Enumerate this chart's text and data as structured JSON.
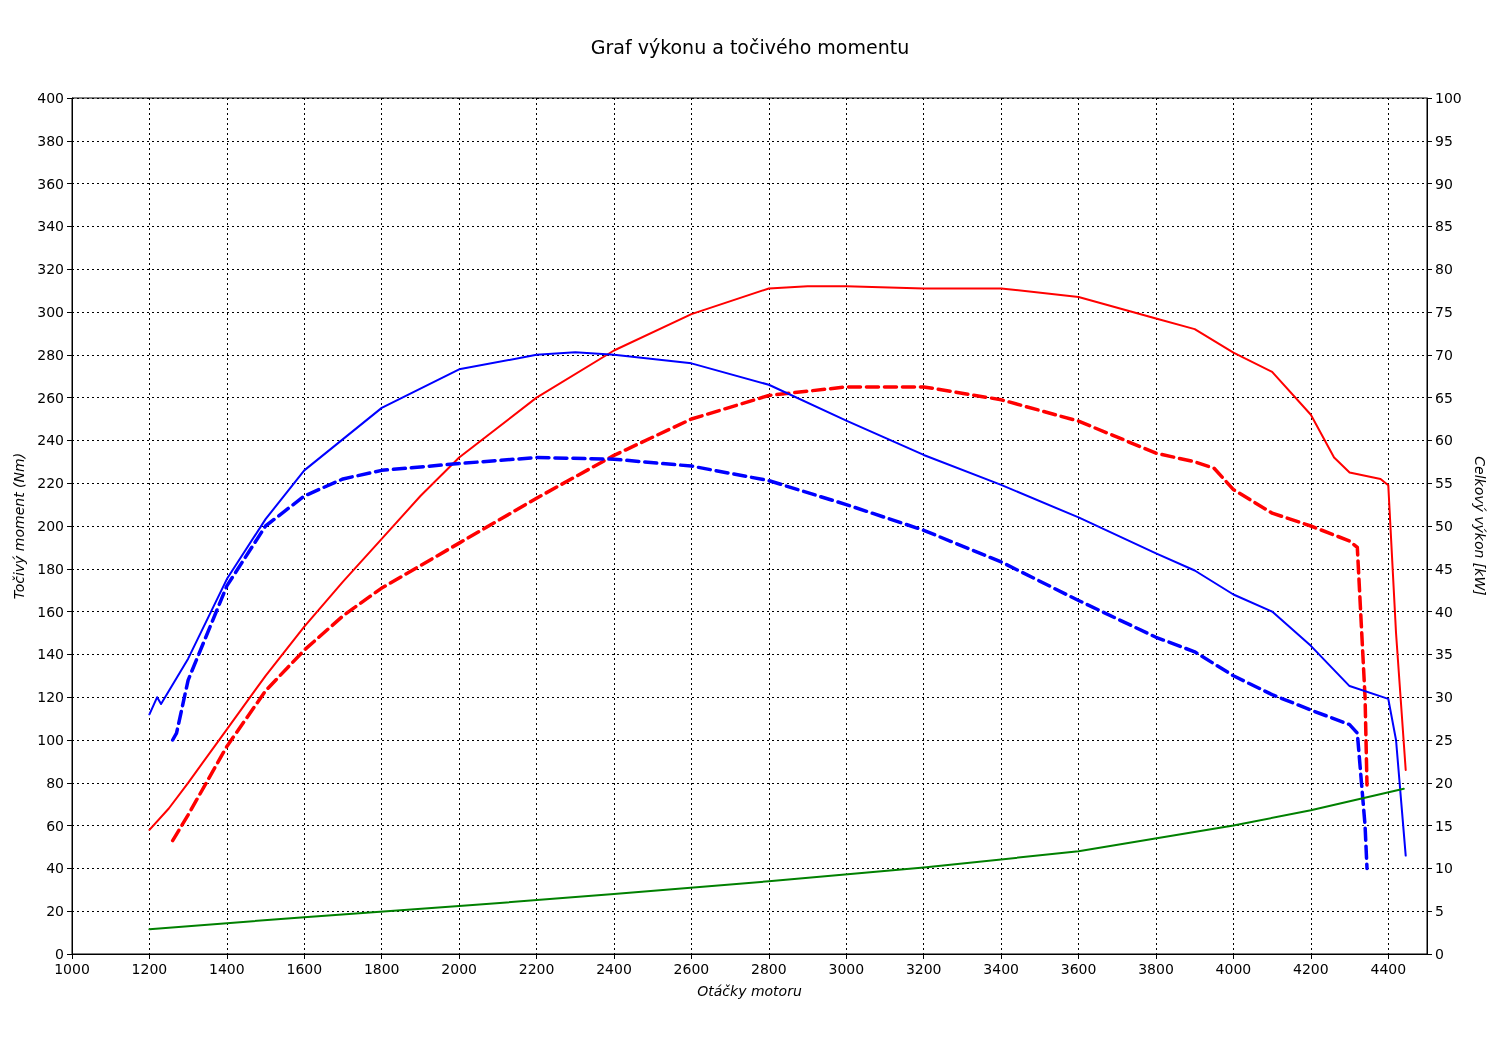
{
  "chart_data": {
    "type": "line",
    "title": "Graf výkonu a točivého momentu",
    "xlabel": "Otáčky motoru",
    "ylabel": "Točivý moment (Nm)",
    "y2label": "Celkový výkon [kW]",
    "xlim": [
      1000,
      4500
    ],
    "xticks": [
      1000,
      1200,
      1400,
      1600,
      1800,
      2000,
      2200,
      2400,
      2600,
      2800,
      3000,
      3200,
      3400,
      3600,
      3800,
      4000,
      4200,
      4400
    ],
    "ylim": [
      0,
      400
    ],
    "yticks": [
      0,
      20,
      40,
      60,
      80,
      100,
      120,
      140,
      160,
      180,
      200,
      220,
      240,
      260,
      280,
      300,
      320,
      340,
      360,
      380,
      400
    ],
    "y2lim": [
      0,
      100
    ],
    "y2ticks": [
      0,
      5,
      10,
      15,
      20,
      25,
      30,
      35,
      40,
      45,
      50,
      55,
      60,
      65,
      70,
      75,
      80,
      85,
      90,
      95,
      100
    ],
    "grid": true,
    "marker": "none",
    "series": [
      {
        "color": "#ff0000",
        "line_style": "solid",
        "x": [
          1200,
          1250,
          1300,
          1400,
          1500,
          1600,
          1700,
          1800,
          1900,
          2000,
          2200,
          2400,
          2600,
          2800,
          2900,
          3000,
          3200,
          3400,
          3600,
          3800,
          3900,
          4000,
          4100,
          4200,
          4260,
          4300,
          4380,
          4400,
          4420,
          4445
        ],
        "values": [
          58,
          68,
          80,
          105,
          130,
          153,
          174,
          194,
          214,
          232,
          260,
          282,
          299,
          311,
          312,
          312,
          311,
          311,
          307,
          297,
          292,
          281,
          272,
          252,
          232,
          225,
          222,
          219,
          150,
          86
        ]
      },
      {
        "color": "#ff0000",
        "line_style": "dashed",
        "x": [
          1260,
          1300,
          1400,
          1500,
          1600,
          1700,
          1800,
          2000,
          2200,
          2400,
          2600,
          2800,
          3000,
          3200,
          3400,
          3600,
          3800,
          3900,
          3950,
          4000,
          4100,
          4200,
          4300,
          4320,
          4340,
          4345
        ],
        "values": [
          53,
          65,
          97,
          123,
          142,
          158,
          171,
          192,
          213,
          233,
          250,
          261,
          265,
          265,
          259,
          249,
          234,
          230,
          227,
          217,
          206,
          200,
          193,
          190,
          120,
          79
        ]
      },
      {
        "color": "#0000ff",
        "line_style": "solid",
        "axis": "y2",
        "x": [
          1200,
          1220,
          1230,
          1300,
          1400,
          1500,
          1600,
          1800,
          2000,
          2200,
          2300,
          2400,
          2600,
          2800,
          3000,
          3200,
          3400,
          3600,
          3800,
          3900,
          4000,
          4100,
          4200,
          4300,
          4400,
          4420,
          4445
        ],
        "values": [
          28,
          30,
          29.2,
          34.5,
          43.8,
          50.8,
          56.5,
          63.8,
          68.3,
          70,
          70.3,
          70,
          69,
          66.5,
          62.3,
          58.3,
          54.8,
          51,
          46.8,
          44.8,
          42,
          40,
          36,
          31.3,
          29.8,
          25,
          11.5
        ]
      },
      {
        "color": "#0000ff",
        "line_style": "dashed",
        "axis": "y2",
        "x": [
          1260,
          1270,
          1300,
          1400,
          1500,
          1600,
          1700,
          1800,
          2000,
          2200,
          2400,
          2600,
          2800,
          3000,
          3200,
          3400,
          3600,
          3800,
          3900,
          4000,
          4100,
          4200,
          4300,
          4320,
          4340,
          4345
        ],
        "values": [
          25,
          25.8,
          32,
          43,
          50,
          53.5,
          55.5,
          56.5,
          57.3,
          58,
          57.8,
          57,
          55.3,
          52.5,
          49.5,
          45.8,
          41.3,
          37,
          35.3,
          32.5,
          30.3,
          28.5,
          26.8,
          25.8,
          15,
          10
        ]
      },
      {
        "color": "#008000",
        "line_style": "solid",
        "axis": "y2",
        "x": [
          1200,
          1600,
          2000,
          2400,
          2800,
          3200,
          3600,
          4000,
          4200,
          4440
        ],
        "values": [
          2.9,
          4.3,
          5.6,
          7,
          8.5,
          10.1,
          12,
          15,
          16.8,
          19.3
        ]
      }
    ]
  }
}
